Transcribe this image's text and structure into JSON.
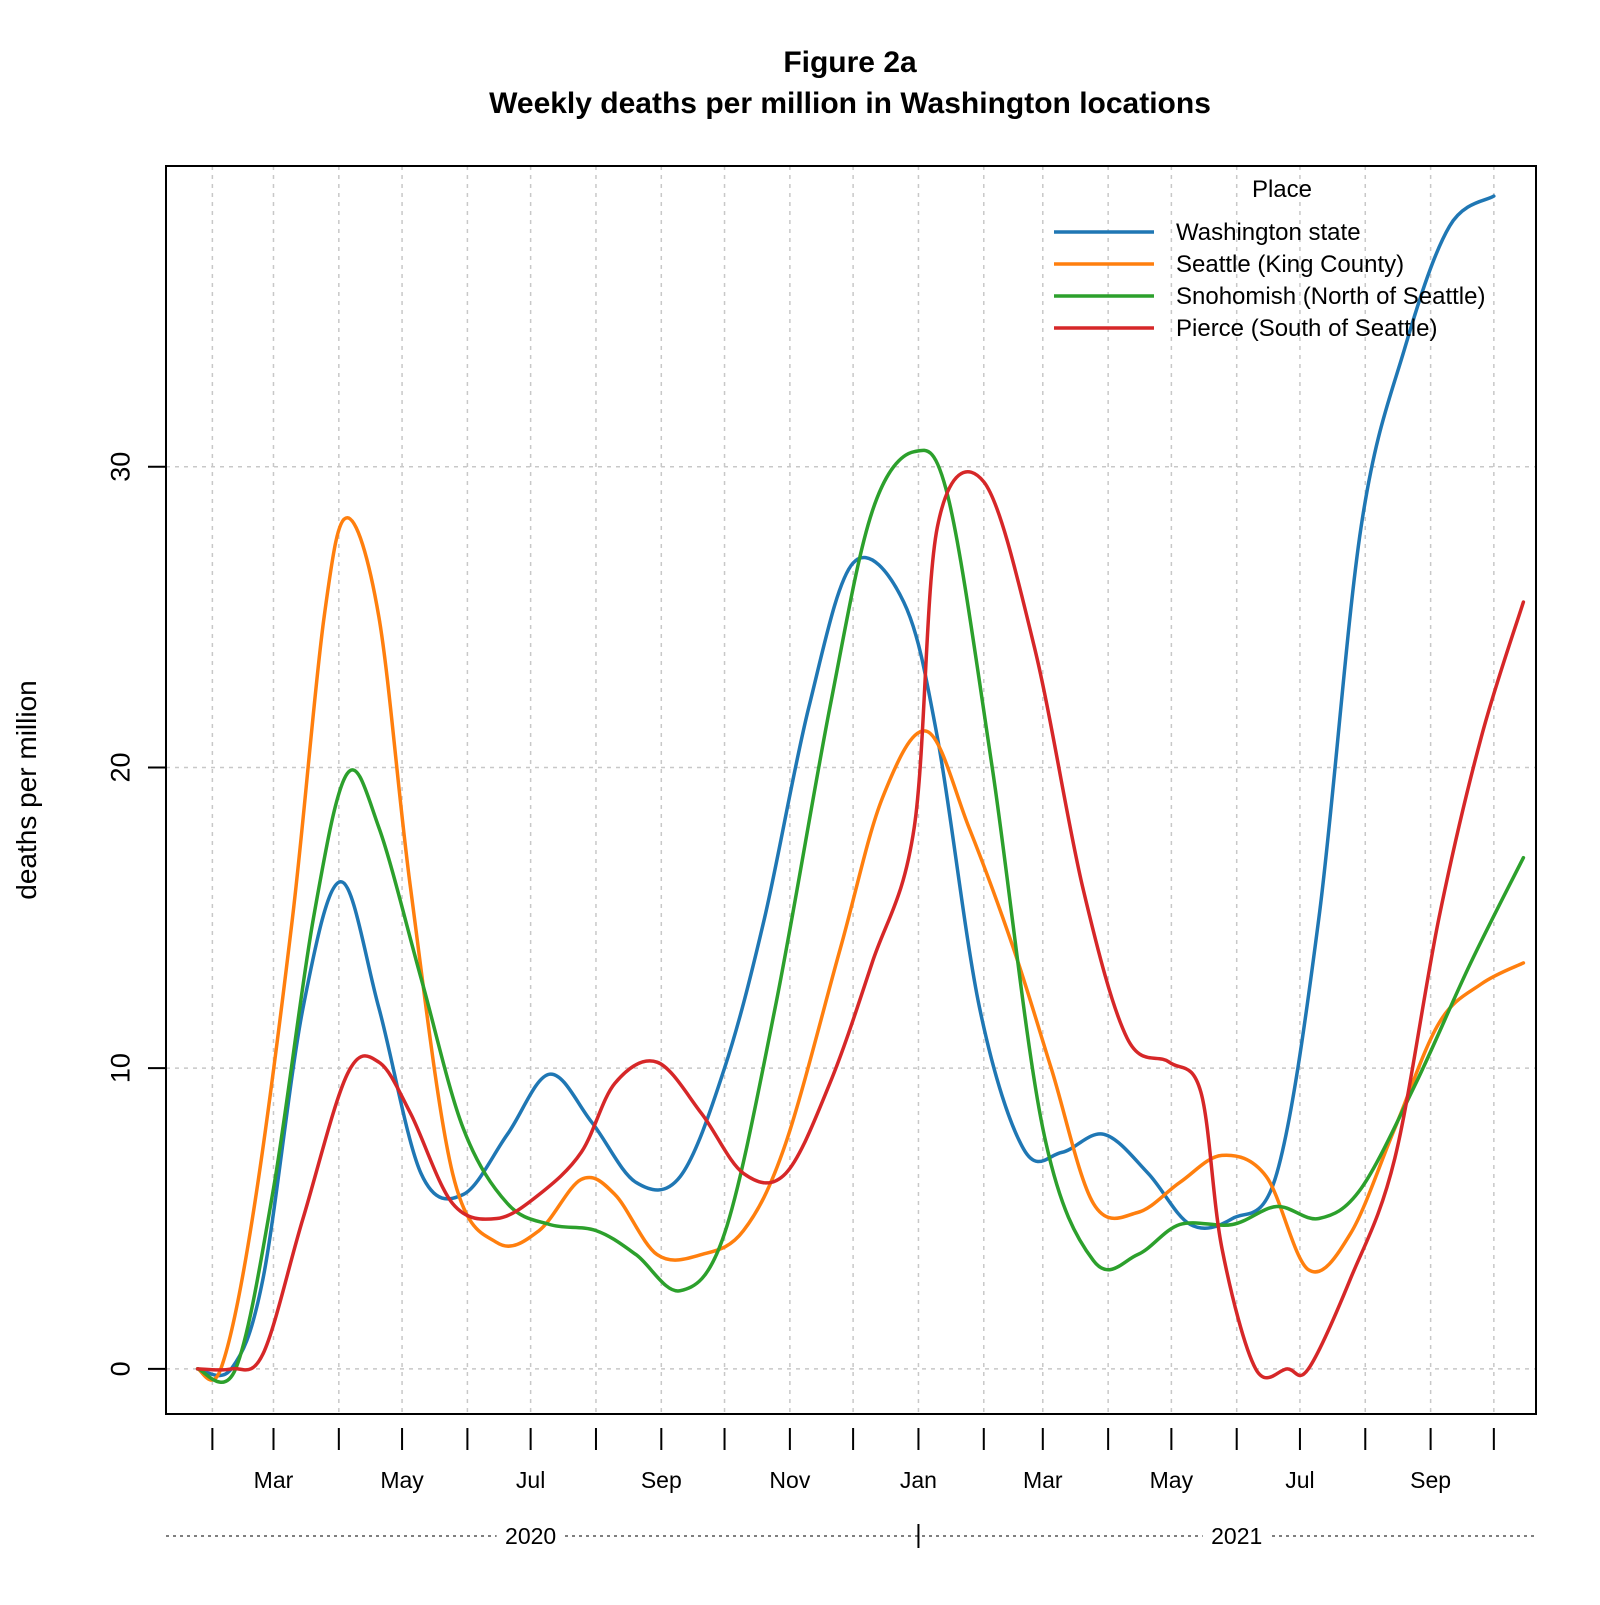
{
  "chart_data": {
    "type": "line",
    "title": "Figure 2a",
    "subtitle": "Weekly deaths per million in Washington locations",
    "xlabel": "",
    "ylabel": "deaths per million",
    "ylim": [
      -1.5,
      40.0
    ],
    "xlim": [
      "2020-01-10",
      "2021-10-21"
    ],
    "y_ticks": [
      0,
      10,
      20,
      30
    ],
    "x_ticks": [
      {
        "date": "2020-02-01",
        "label": ""
      },
      {
        "date": "2020-03-01",
        "label": "Mar"
      },
      {
        "date": "2020-04-01",
        "label": ""
      },
      {
        "date": "2020-05-01",
        "label": "May"
      },
      {
        "date": "2020-06-01",
        "label": ""
      },
      {
        "date": "2020-07-01",
        "label": "Jul"
      },
      {
        "date": "2020-08-01",
        "label": ""
      },
      {
        "date": "2020-09-01",
        "label": "Sep"
      },
      {
        "date": "2020-10-01",
        "label": ""
      },
      {
        "date": "2020-11-01",
        "label": "Nov"
      },
      {
        "date": "2020-12-01",
        "label": ""
      },
      {
        "date": "2021-01-01",
        "label": "Jan"
      },
      {
        "date": "2021-02-01",
        "label": ""
      },
      {
        "date": "2021-03-01",
        "label": "Mar"
      },
      {
        "date": "2021-04-01",
        "label": ""
      },
      {
        "date": "2021-05-01",
        "label": "May"
      },
      {
        "date": "2021-06-01",
        "label": ""
      },
      {
        "date": "2021-07-01",
        "label": "Jul"
      },
      {
        "date": "2021-08-01",
        "label": ""
      },
      {
        "date": "2021-09-01",
        "label": "Sep"
      },
      {
        "date": "2021-10-01",
        "label": ""
      }
    ],
    "year_labels": [
      {
        "label": "2020",
        "center": "2020-07-01"
      },
      {
        "label": "2021",
        "center": "2021-06-01"
      }
    ],
    "year_break": "2021-01-01",
    "grid": true,
    "legend": {
      "title": "Place",
      "position": "top-right"
    },
    "series": [
      {
        "name": "Washington state",
        "color": "#1f77b4",
        "x": [
          "2020-01-25",
          "2020-02-10",
          "2020-02-25",
          "2020-03-15",
          "2020-04-02",
          "2020-04-20",
          "2020-05-10",
          "2020-05-30",
          "2020-06-20",
          "2020-07-10",
          "2020-07-30",
          "2020-08-20",
          "2020-09-10",
          "2020-10-01",
          "2020-10-20",
          "2020-11-10",
          "2020-12-01",
          "2020-12-25",
          "2021-01-10",
          "2021-01-30",
          "2021-02-20",
          "2021-03-10",
          "2021-03-30",
          "2021-04-20",
          "2021-05-10",
          "2021-05-30",
          "2021-06-20",
          "2021-07-10",
          "2021-07-30",
          "2021-08-20",
          "2021-09-10",
          "2021-10-01"
        ],
        "values": [
          0,
          0,
          3,
          12,
          16.2,
          12,
          6.5,
          5.8,
          7.8,
          9.8,
          8.2,
          6.2,
          6.4,
          10,
          15,
          22,
          26.8,
          25.5,
          21,
          12,
          7.3,
          7.2,
          7.8,
          6.5,
          4.8,
          5.0,
          6.5,
          15,
          28,
          34,
          38,
          39
        ]
      },
      {
        "name": "Seattle (King County)",
        "color": "#ff7f0e",
        "x": [
          "2020-01-25",
          "2020-02-05",
          "2020-02-20",
          "2020-03-10",
          "2020-03-25",
          "2020-04-05",
          "2020-04-20",
          "2020-05-05",
          "2020-05-25",
          "2020-06-15",
          "2020-07-05",
          "2020-07-25",
          "2020-08-10",
          "2020-08-30",
          "2020-09-20",
          "2020-10-10",
          "2020-10-30",
          "2020-11-25",
          "2020-12-15",
          "2021-01-05",
          "2021-01-25",
          "2021-02-15",
          "2021-03-05",
          "2021-03-25",
          "2021-04-15",
          "2021-05-05",
          "2021-05-25",
          "2021-06-15",
          "2021-07-05",
          "2021-07-25",
          "2021-08-15",
          "2021-09-05",
          "2021-09-25",
          "2021-10-15"
        ],
        "values": [
          0,
          0,
          5,
          15,
          25,
          28.3,
          25,
          16,
          6.5,
          4.2,
          4.6,
          6.3,
          5.8,
          3.8,
          3.8,
          4.6,
          7.5,
          14,
          19,
          21.2,
          18,
          14,
          10,
          5.5,
          5.2,
          6.2,
          7.1,
          6.4,
          3.3,
          4.5,
          8,
          11.5,
          12.8,
          13.5
        ]
      },
      {
        "name": "Snohomish (North of Seattle)",
        "color": "#2ca02c",
        "x": [
          "2020-01-25",
          "2020-02-12",
          "2020-03-01",
          "2020-03-20",
          "2020-04-05",
          "2020-04-20",
          "2020-05-10",
          "2020-05-30",
          "2020-06-20",
          "2020-07-10",
          "2020-08-01",
          "2020-08-20",
          "2020-09-10",
          "2020-10-01",
          "2020-10-25",
          "2020-11-20",
          "2020-12-10",
          "2020-12-30",
          "2021-01-15",
          "2021-02-05",
          "2021-03-01",
          "2021-03-25",
          "2021-04-15",
          "2021-05-05",
          "2021-05-30",
          "2021-06-20",
          "2021-07-10",
          "2021-07-30",
          "2021-08-25",
          "2021-09-20",
          "2021-10-15"
        ],
        "values": [
          0,
          0,
          6,
          15,
          19.8,
          18,
          13,
          8,
          5.5,
          4.8,
          4.6,
          3.8,
          2.6,
          4.5,
          12,
          22,
          28.5,
          30.5,
          29,
          20,
          8,
          3.6,
          3.8,
          4.8,
          4.8,
          5.4,
          5.0,
          6.0,
          9.5,
          13.5,
          17
        ]
      },
      {
        "name": "Pierce (South of Seattle)",
        "color": "#d62728",
        "x": [
          "2020-01-25",
          "2020-02-10",
          "2020-02-25",
          "2020-03-15",
          "2020-04-05",
          "2020-04-20",
          "2020-05-05",
          "2020-05-25",
          "2020-06-15",
          "2020-07-05",
          "2020-07-25",
          "2020-08-10",
          "2020-08-30",
          "2020-09-20",
          "2020-10-10",
          "2020-10-30",
          "2020-11-20",
          "2020-12-10",
          "2020-12-30",
          "2021-01-10",
          "2021-02-01",
          "2021-02-25",
          "2021-03-20",
          "2021-04-10",
          "2021-04-30",
          "2021-05-15",
          "2021-05-25",
          "2021-06-10",
          "2021-06-25",
          "2021-07-05",
          "2021-07-25",
          "2021-08-15",
          "2021-09-05",
          "2021-09-25",
          "2021-10-15"
        ],
        "values": [
          0,
          0,
          0.5,
          5,
          9.8,
          10.2,
          8.5,
          5.5,
          5.0,
          5.8,
          7.2,
          9.5,
          10.2,
          8.5,
          6.5,
          6.5,
          9.5,
          13.5,
          18,
          28,
          29.5,
          24,
          16,
          11,
          10.2,
          9.2,
          4,
          0,
          0,
          0,
          3,
          7,
          15,
          21,
          25.5
        ]
      }
    ]
  }
}
